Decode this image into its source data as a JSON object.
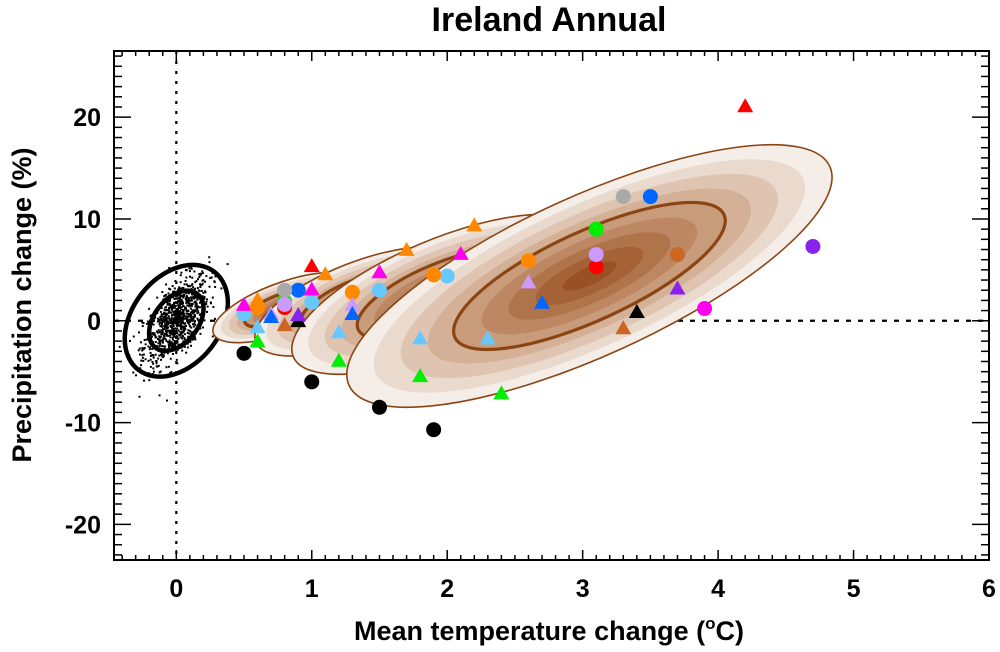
{
  "chart_data": {
    "type": "scatter",
    "title": "Ireland Annual",
    "xlabel": "Mean temperature change (°C)",
    "xlabel_parts": [
      "Mean temperature change (",
      "o",
      "C)"
    ],
    "ylabel": "Precipitation change (%)",
    "xlim": [
      -0.46,
      6.0
    ],
    "ylim": [
      -23.5,
      26.5
    ],
    "xticks": [
      0,
      1,
      2,
      3,
      4,
      5,
      6
    ],
    "xtick_labels": [
      "0",
      "1",
      "2",
      "3",
      "4",
      "5",
      "6"
    ],
    "yticks": [
      -20,
      -10,
      0,
      10,
      20
    ],
    "ytick_labels": [
      "-20",
      "-10",
      "0",
      "10",
      "20"
    ],
    "x_minor_step": 0.1,
    "y_minor_step": 1,
    "grid": false,
    "legend": "none",
    "reference_lines": [
      {
        "orientation": "vertical",
        "value": 0,
        "style": "dotted"
      },
      {
        "orientation": "horizontal",
        "value": 0,
        "style": "dotted"
      }
    ],
    "control_cloud": {
      "description": "natural variability scatter with black probability ellipses",
      "center": [
        0.0,
        0.0
      ],
      "x_sd": 0.12,
      "y_sd": 2.2,
      "correlation": 0.6,
      "point_count": 900,
      "ellipse_levels_sd": [
        1.0,
        2.0
      ]
    },
    "shading_colors": [
      "#f5ede8",
      "#ead9cd",
      "#dfc5b1",
      "#d4b196",
      "#c89b7b",
      "#bc8762",
      "#b0744b",
      "#a46236",
      "#985124"
    ],
    "contour_color": "#8b4513",
    "distributions": [
      {
        "name": "scenario-1",
        "center": [
          0.8,
          1.3
        ],
        "x_half_width": 0.56,
        "y_half_height": 4.0,
        "tilt": 0.45
      },
      {
        "name": "scenario-2",
        "center": [
          1.35,
          1.9
        ],
        "x_half_width": 0.82,
        "y_half_height": 6.2,
        "tilt": 0.45
      },
      {
        "name": "scenario-3",
        "center": [
          1.95,
          2.6
        ],
        "x_half_width": 1.18,
        "y_half_height": 8.6,
        "tilt": 0.45
      },
      {
        "name": "scenario-4",
        "center": [
          3.05,
          4.4
        ],
        "x_half_width": 1.95,
        "y_half_height": 12.6,
        "tilt": 0.45
      }
    ],
    "series": [
      {
        "name": "black",
        "color": "#000000",
        "points": [
          {
            "x": 0.5,
            "y": -3.2,
            "marker": "circle"
          },
          {
            "x": 1.0,
            "y": -6.0,
            "marker": "circle"
          },
          {
            "x": 1.5,
            "y": -8.5,
            "marker": "circle"
          },
          {
            "x": 1.9,
            "y": -10.7,
            "marker": "circle"
          },
          {
            "x": 0.9,
            "y": -0.1,
            "marker": "triangle"
          },
          {
            "x": 3.4,
            "y": 0.8,
            "marker": "triangle"
          }
        ]
      },
      {
        "name": "red",
        "color": "#ff0000",
        "points": [
          {
            "x": 4.2,
            "y": 21.0,
            "marker": "triangle"
          },
          {
            "x": 1.0,
            "y": 5.3,
            "marker": "triangle"
          },
          {
            "x": 0.8,
            "y": 1.3,
            "marker": "circle"
          },
          {
            "x": 3.1,
            "y": 5.3,
            "marker": "circle"
          }
        ]
      },
      {
        "name": "green",
        "color": "#00ee00",
        "points": [
          {
            "x": 0.6,
            "y": -2.1,
            "marker": "triangle"
          },
          {
            "x": 1.2,
            "y": -4.0,
            "marker": "triangle"
          },
          {
            "x": 1.8,
            "y": -5.5,
            "marker": "triangle"
          },
          {
            "x": 2.4,
            "y": -7.2,
            "marker": "triangle"
          },
          {
            "x": 0.8,
            "y": 1.9,
            "marker": "circle"
          },
          {
            "x": 3.1,
            "y": 9.0,
            "marker": "circle"
          }
        ]
      },
      {
        "name": "light-blue",
        "color": "#66c8ff",
        "points": [
          {
            "x": 0.6,
            "y": -0.7,
            "marker": "triangle"
          },
          {
            "x": 1.2,
            "y": -1.2,
            "marker": "triangle"
          },
          {
            "x": 1.8,
            "y": -1.8,
            "marker": "triangle"
          },
          {
            "x": 2.3,
            "y": -1.8,
            "marker": "triangle"
          },
          {
            "x": 0.5,
            "y": 0.7,
            "marker": "circle"
          },
          {
            "x": 1.0,
            "y": 1.8,
            "marker": "circle"
          },
          {
            "x": 1.5,
            "y": 3.0,
            "marker": "circle"
          },
          {
            "x": 2.0,
            "y": 4.4,
            "marker": "circle"
          }
        ]
      },
      {
        "name": "magenta",
        "color": "#ff00ee",
        "points": [
          {
            "x": 0.5,
            "y": 1.5,
            "marker": "triangle"
          },
          {
            "x": 1.0,
            "y": 3.0,
            "marker": "triangle"
          },
          {
            "x": 1.5,
            "y": 4.7,
            "marker": "triangle"
          },
          {
            "x": 2.1,
            "y": 6.5,
            "marker": "triangle"
          },
          {
            "x": 3.9,
            "y": 1.2,
            "marker": "circle"
          }
        ]
      },
      {
        "name": "orange",
        "color": "#ff8800",
        "points": [
          {
            "x": 0.6,
            "y": 2.0,
            "marker": "triangle"
          },
          {
            "x": 1.1,
            "y": 4.5,
            "marker": "triangle"
          },
          {
            "x": 1.7,
            "y": 6.9,
            "marker": "triangle"
          },
          {
            "x": 2.2,
            "y": 9.3,
            "marker": "triangle"
          },
          {
            "x": 0.6,
            "y": 1.3,
            "marker": "circle"
          },
          {
            "x": 1.3,
            "y": 2.8,
            "marker": "circle"
          },
          {
            "x": 1.9,
            "y": 4.5,
            "marker": "circle"
          },
          {
            "x": 2.6,
            "y": 5.9,
            "marker": "circle"
          }
        ]
      },
      {
        "name": "lilac",
        "color": "#cc99ff",
        "points": [
          {
            "x": 0.7,
            "y": 0.6,
            "marker": "triangle"
          },
          {
            "x": 1.3,
            "y": 1.5,
            "marker": "triangle"
          },
          {
            "x": 2.6,
            "y": 3.7,
            "marker": "triangle"
          },
          {
            "x": 0.8,
            "y": 1.6,
            "marker": "circle"
          },
          {
            "x": 3.1,
            "y": 6.5,
            "marker": "circle"
          }
        ]
      },
      {
        "name": "blue",
        "color": "#0066ff",
        "points": [
          {
            "x": 0.7,
            "y": 0.3,
            "marker": "triangle"
          },
          {
            "x": 1.3,
            "y": 0.6,
            "marker": "triangle"
          },
          {
            "x": 2.7,
            "y": 1.7,
            "marker": "triangle"
          },
          {
            "x": 0.9,
            "y": 3.0,
            "marker": "circle"
          },
          {
            "x": 3.5,
            "y": 12.2,
            "marker": "circle"
          }
        ]
      },
      {
        "name": "grey",
        "color": "#aaaaaa",
        "points": [
          {
            "x": 0.8,
            "y": 3.0,
            "marker": "circle"
          },
          {
            "x": 3.3,
            "y": 12.2,
            "marker": "circle"
          }
        ]
      },
      {
        "name": "brown",
        "color": "#cc6622",
        "points": [
          {
            "x": 0.8,
            "y": -0.5,
            "marker": "triangle"
          },
          {
            "x": 3.3,
            "y": -0.8,
            "marker": "triangle"
          },
          {
            "x": 3.7,
            "y": 6.5,
            "marker": "circle"
          }
        ]
      },
      {
        "name": "purple",
        "color": "#8822ee",
        "points": [
          {
            "x": 0.9,
            "y": 0.5,
            "marker": "triangle"
          },
          {
            "x": 3.7,
            "y": 3.1,
            "marker": "triangle"
          },
          {
            "x": 4.7,
            "y": 7.3,
            "marker": "circle"
          }
        ]
      }
    ]
  }
}
